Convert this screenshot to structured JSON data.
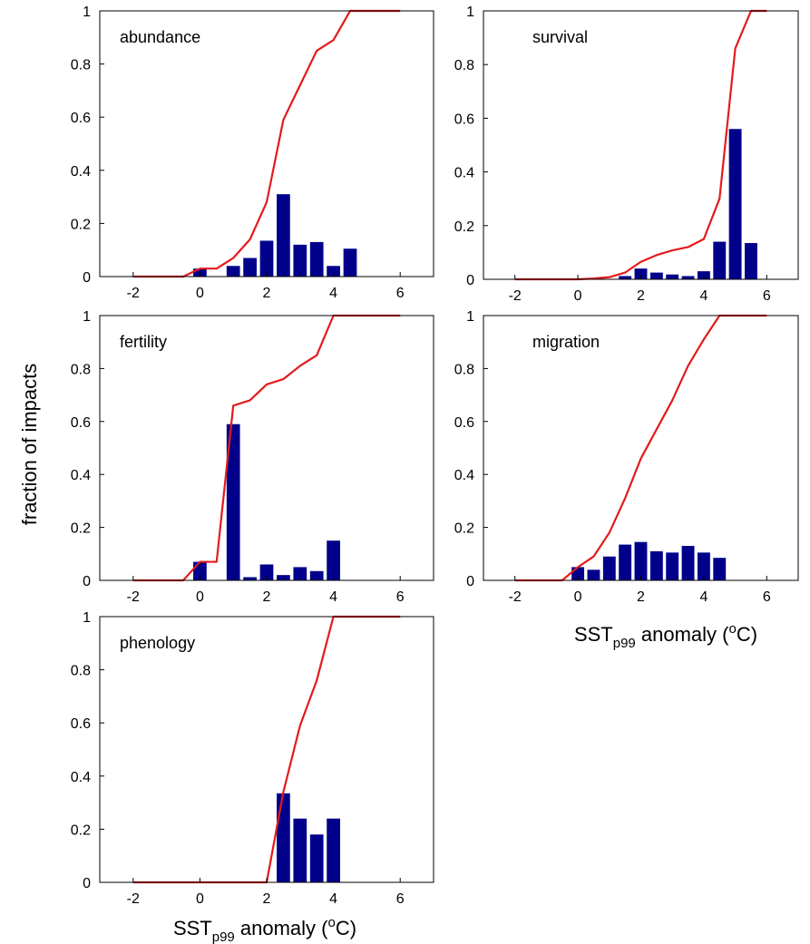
{
  "ylabel": "fraction of impacts",
  "xlabel_main": "SST",
  "xlabel_sub": "p99",
  "xlabel_rest": " anomaly (",
  "xlabel_degree": "o",
  "xlabel_unit": "C)",
  "colors": {
    "bars": "#00008b",
    "line": "#e41a1c",
    "axes": "#000000"
  },
  "chart_data": [
    {
      "type": "bar",
      "title": "abundance",
      "xlim": [
        -3,
        7
      ],
      "ylim": [
        0,
        1
      ],
      "xticks": [
        -2,
        0,
        2,
        4,
        6
      ],
      "yticks": [
        0,
        0.2,
        0.4,
        0.6,
        0.8,
        1
      ],
      "bar_width": 0.4,
      "bars": [
        {
          "x": 0.0,
          "y": 0.03
        },
        {
          "x": 1.0,
          "y": 0.04
        },
        {
          "x": 1.5,
          "y": 0.07
        },
        {
          "x": 2.0,
          "y": 0.135
        },
        {
          "x": 2.5,
          "y": 0.31
        },
        {
          "x": 3.0,
          "y": 0.12
        },
        {
          "x": 3.5,
          "y": 0.13
        },
        {
          "x": 4.0,
          "y": 0.04
        },
        {
          "x": 4.5,
          "y": 0.105
        }
      ],
      "cumulative": [
        [
          -2,
          0
        ],
        [
          -0.5,
          0
        ],
        [
          0,
          0.03
        ],
        [
          0.5,
          0.03
        ],
        [
          1,
          0.07
        ],
        [
          1.5,
          0.14
        ],
        [
          2,
          0.28
        ],
        [
          2.5,
          0.59
        ],
        [
          3,
          0.72
        ],
        [
          3.5,
          0.85
        ],
        [
          4,
          0.89
        ],
        [
          4.5,
          1
        ],
        [
          6,
          1
        ]
      ]
    },
    {
      "type": "bar",
      "title": "survival",
      "xlim": [
        -3,
        7
      ],
      "ylim": [
        0,
        1
      ],
      "xticks": [
        -2,
        0,
        2,
        4,
        6
      ],
      "yticks": [
        0,
        0.2,
        0.4,
        0.6,
        0.8,
        1
      ],
      "bar_width": 0.4,
      "bars": [
        {
          "x": 1.5,
          "y": 0.012
        },
        {
          "x": 2.0,
          "y": 0.04
        },
        {
          "x": 2.5,
          "y": 0.025
        },
        {
          "x": 3.0,
          "y": 0.018
        },
        {
          "x": 3.5,
          "y": 0.012
        },
        {
          "x": 4.0,
          "y": 0.03
        },
        {
          "x": 4.5,
          "y": 0.14
        },
        {
          "x": 5.0,
          "y": 0.56
        },
        {
          "x": 5.5,
          "y": 0.135
        }
      ],
      "cumulative": [
        [
          -2,
          0
        ],
        [
          0,
          0
        ],
        [
          0.5,
          0.003
        ],
        [
          1,
          0.008
        ],
        [
          1.5,
          0.025
        ],
        [
          2,
          0.065
        ],
        [
          2.5,
          0.09
        ],
        [
          3,
          0.108
        ],
        [
          3.5,
          0.12
        ],
        [
          4,
          0.15
        ],
        [
          4.5,
          0.3
        ],
        [
          5,
          0.86
        ],
        [
          5.5,
          1
        ],
        [
          6,
          1
        ]
      ]
    },
    {
      "type": "bar",
      "title": "fertility",
      "xlim": [
        -3,
        7
      ],
      "ylim": [
        0,
        1
      ],
      "xticks": [
        -2,
        0,
        2,
        4,
        6
      ],
      "yticks": [
        0,
        0.2,
        0.4,
        0.6,
        0.8,
        1
      ],
      "bar_width": 0.4,
      "bars": [
        {
          "x": 0.0,
          "y": 0.07
        },
        {
          "x": 1.0,
          "y": 0.59
        },
        {
          "x": 1.5,
          "y": 0.012
        },
        {
          "x": 2.0,
          "y": 0.06
        },
        {
          "x": 2.5,
          "y": 0.02
        },
        {
          "x": 3.0,
          "y": 0.05
        },
        {
          "x": 3.5,
          "y": 0.035
        },
        {
          "x": 4.0,
          "y": 0.15
        }
      ],
      "cumulative": [
        [
          -2,
          0
        ],
        [
          -0.5,
          0
        ],
        [
          0,
          0.07
        ],
        [
          0.5,
          0.07
        ],
        [
          1,
          0.66
        ],
        [
          1.5,
          0.68
        ],
        [
          2,
          0.74
        ],
        [
          2.5,
          0.76
        ],
        [
          3,
          0.81
        ],
        [
          3.5,
          0.85
        ],
        [
          4,
          1
        ],
        [
          6,
          1
        ]
      ]
    },
    {
      "type": "bar",
      "title": "migration",
      "xlim": [
        -3,
        7
      ],
      "ylim": [
        0,
        1
      ],
      "xticks": [
        -2,
        0,
        2,
        4,
        6
      ],
      "yticks": [
        0,
        0.2,
        0.4,
        0.6,
        0.8,
        1
      ],
      "bar_width": 0.4,
      "bars": [
        {
          "x": 0.0,
          "y": 0.05
        },
        {
          "x": 0.5,
          "y": 0.04
        },
        {
          "x": 1.0,
          "y": 0.09
        },
        {
          "x": 1.5,
          "y": 0.135
        },
        {
          "x": 2.0,
          "y": 0.145
        },
        {
          "x": 2.5,
          "y": 0.11
        },
        {
          "x": 3.0,
          "y": 0.105
        },
        {
          "x": 3.5,
          "y": 0.13
        },
        {
          "x": 4.0,
          "y": 0.105
        },
        {
          "x": 4.5,
          "y": 0.085
        }
      ],
      "cumulative": [
        [
          -2,
          0
        ],
        [
          -0.5,
          0
        ],
        [
          0,
          0.05
        ],
        [
          0.5,
          0.09
        ],
        [
          1,
          0.18
        ],
        [
          1.5,
          0.31
        ],
        [
          2,
          0.46
        ],
        [
          2.5,
          0.57
        ],
        [
          3,
          0.68
        ],
        [
          3.5,
          0.81
        ],
        [
          4,
          0.91
        ],
        [
          4.5,
          1
        ],
        [
          6,
          1
        ]
      ]
    },
    {
      "type": "bar",
      "title": "phenology",
      "xlim": [
        -3,
        7
      ],
      "ylim": [
        0,
        1
      ],
      "xticks": [
        -2,
        0,
        2,
        4,
        6
      ],
      "yticks": [
        0,
        0.2,
        0.4,
        0.6,
        0.8,
        1
      ],
      "bar_width": 0.4,
      "bars": [
        {
          "x": 2.5,
          "y": 0.335
        },
        {
          "x": 3.0,
          "y": 0.24
        },
        {
          "x": 3.5,
          "y": 0.18
        },
        {
          "x": 4.0,
          "y": 0.24
        }
      ],
      "cumulative": [
        [
          -2,
          0
        ],
        [
          2,
          0
        ],
        [
          2.5,
          0.34
        ],
        [
          3,
          0.59
        ],
        [
          3.5,
          0.76
        ],
        [
          4,
          1
        ],
        [
          6,
          1
        ]
      ]
    }
  ]
}
